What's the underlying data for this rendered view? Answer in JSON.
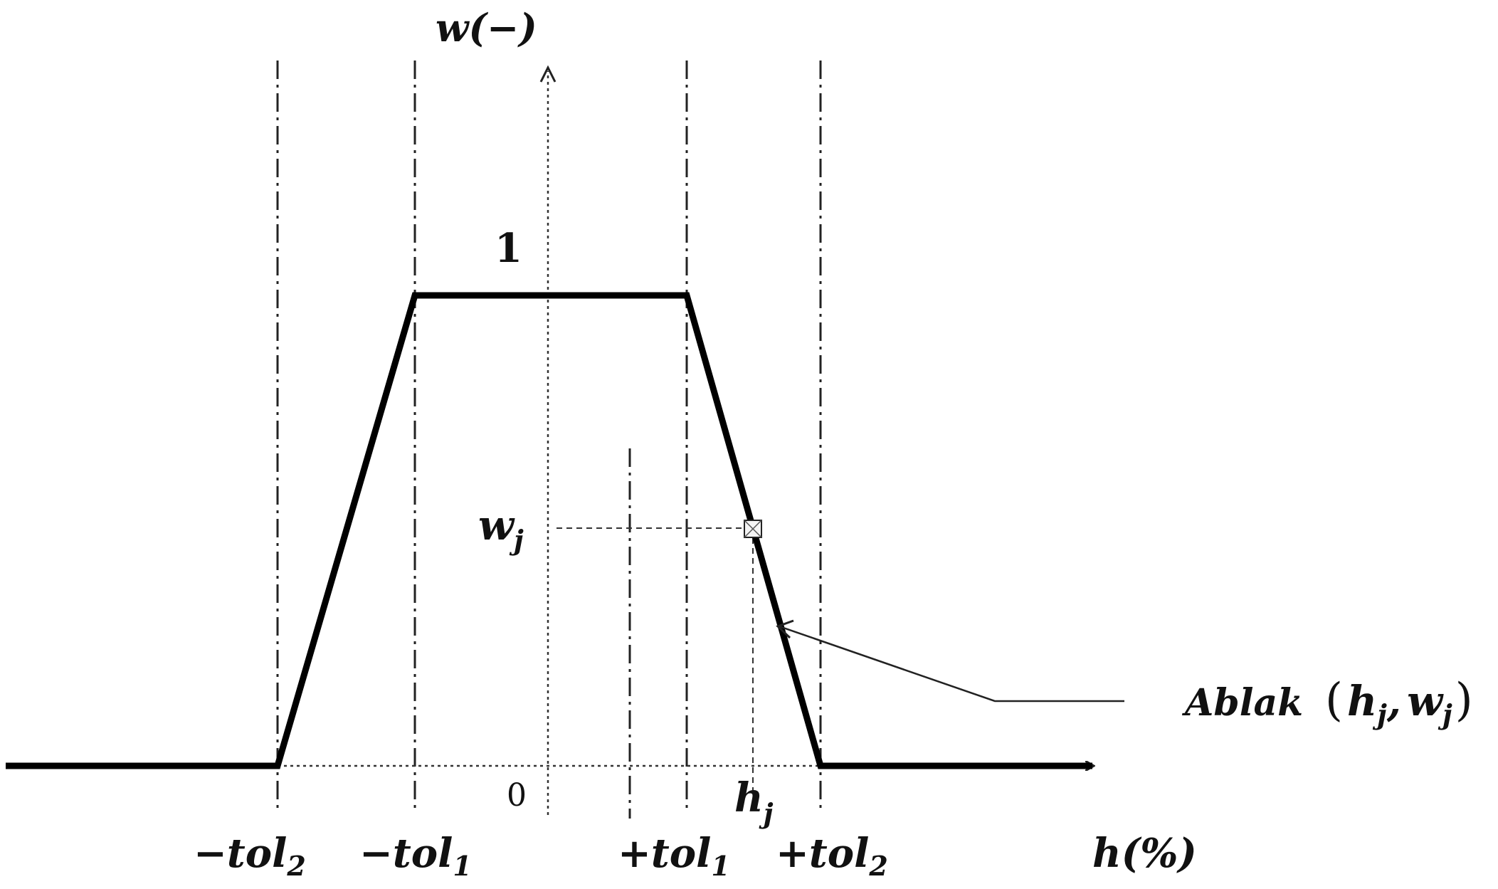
{
  "diagram": {
    "y_axis_label": "w(−)",
    "x_axis_label": "h(%)",
    "plateau_label": "1",
    "origin_label": "0",
    "point_y_label": "w",
    "point_y_sub": "j",
    "point_x_label": "h",
    "point_x_sub": "j",
    "ticks": [
      {
        "prefix": "−",
        "name": "tol",
        "sub": "2"
      },
      {
        "prefix": "−",
        "name": "tol",
        "sub": "1"
      },
      {
        "prefix": "+",
        "name": "tol",
        "sub": "1"
      },
      {
        "prefix": "+",
        "name": "tol",
        "sub": "2"
      }
    ],
    "callout": {
      "word": "Ablak",
      "open": "(",
      "h": "h",
      "h_sub": "j",
      "comma": ",",
      "w": "w",
      "w_sub": "j",
      "close": ")"
    }
  }
}
